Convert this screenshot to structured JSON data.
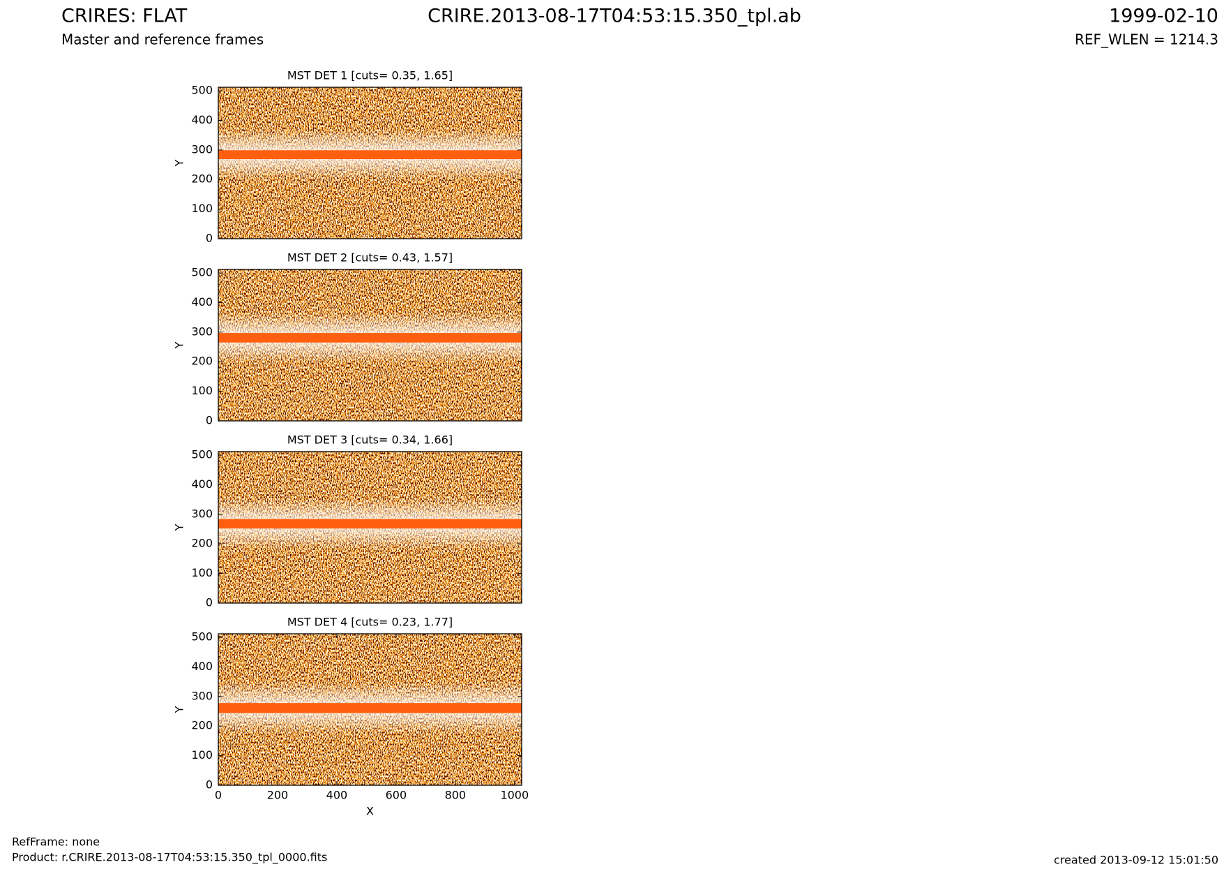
{
  "header": {
    "title": "CRIRES: FLAT",
    "subtitle": "Master and reference frames",
    "file": "CRIRE.2013-08-17T04:53:15.350_tpl.ab",
    "date": "1999-02-10",
    "ref_wlen": "REF_WLEN = 1214.3"
  },
  "footer": {
    "ref_frame": "RefFrame: none",
    "product": "Product: r.CRIRE.2013-08-17T04:53:15.350_tpl_0000.fits",
    "created": "created 2013-09-12 15:01:50"
  },
  "chart_data": [
    {
      "type": "image",
      "title": "MST DET 1 [cuts= 0.35, 1.65]",
      "ylabel": "Y",
      "xlim": [
        0,
        1024
      ],
      "ylim": [
        0,
        512
      ],
      "yticks": [
        0,
        100,
        200,
        300,
        400,
        500
      ],
      "band_ylim": [
        269,
        299
      ]
    },
    {
      "type": "image",
      "title": "MST DET 2 [cuts= 0.43, 1.57]",
      "ylabel": "Y",
      "xlim": [
        0,
        1024
      ],
      "ylim": [
        0,
        512
      ],
      "yticks": [
        0,
        100,
        200,
        300,
        400,
        500
      ],
      "band_ylim": [
        265,
        297
      ]
    },
    {
      "type": "image",
      "title": "MST DET 3 [cuts= 0.34, 1.66]",
      "ylabel": "Y",
      "xlim": [
        0,
        1024
      ],
      "ylim": [
        0,
        512
      ],
      "yticks": [
        0,
        100,
        200,
        300,
        400,
        500
      ],
      "band_ylim": [
        252,
        284
      ]
    },
    {
      "type": "image",
      "title": "MST DET 4 [cuts= 0.23, 1.77]",
      "ylabel": "Y",
      "xlabel": "X",
      "xlim": [
        0,
        1024
      ],
      "ylim": [
        0,
        512
      ],
      "yticks": [
        0,
        100,
        200,
        300,
        400,
        500
      ],
      "xticks": [
        0,
        200,
        400,
        600,
        800,
        1000
      ],
      "band_ylim": [
        244,
        278
      ]
    }
  ]
}
